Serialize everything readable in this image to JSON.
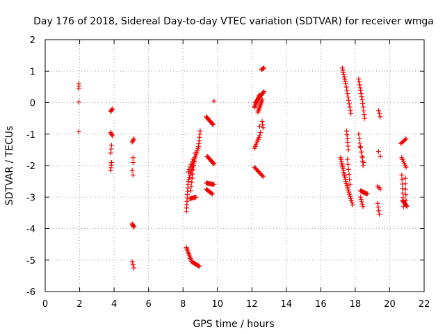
{
  "chart_data": {
    "type": "scatter",
    "title": "Day 176 of 2018, Sidereal Day-to-day VTEC variation (SDTVAR) for receiver wmga",
    "xlabel": "GPS time / hours",
    "ylabel": "SDTVAR / TECUs",
    "xlim": [
      0,
      22
    ],
    "ylim": [
      -6,
      2
    ],
    "xticks": [
      0,
      2,
      4,
      6,
      8,
      10,
      12,
      14,
      16,
      18,
      20,
      22
    ],
    "yticks": [
      -6,
      -5,
      -4,
      -3,
      -2,
      -1,
      0,
      1,
      2
    ],
    "grid": true,
    "marker": "+",
    "color": "#ee0000",
    "segments": [
      {
        "x0": 1.95,
        "y0": 0.6,
        "x1": 1.95,
        "y1": 0.45,
        "n": 3
      },
      {
        "x0": 1.95,
        "y0": 0.02,
        "x1": 1.95,
        "y1": 0.02,
        "n": 1
      },
      {
        "x0": 1.95,
        "y0": -0.92,
        "x1": 1.95,
        "y1": -0.92,
        "n": 1
      },
      {
        "x0": 3.8,
        "y0": -0.28,
        "x1": 3.9,
        "y1": -0.2,
        "n": 4
      },
      {
        "x0": 3.8,
        "y0": -0.95,
        "x1": 3.9,
        "y1": -1.05,
        "n": 4
      },
      {
        "x0": 3.85,
        "y0": -1.35,
        "x1": 3.8,
        "y1": -1.6,
        "n": 3
      },
      {
        "x0": 3.85,
        "y0": -1.9,
        "x1": 3.8,
        "y1": -2.15,
        "n": 4
      },
      {
        "x0": 5.05,
        "y0": -1.25,
        "x1": 5.15,
        "y1": -1.15,
        "n": 4
      },
      {
        "x0": 5.1,
        "y0": -1.75,
        "x1": 5.1,
        "y1": -1.9,
        "n": 2
      },
      {
        "x0": 5.05,
        "y0": -2.15,
        "x1": 5.1,
        "y1": -2.3,
        "n": 2
      },
      {
        "x0": 5.05,
        "y0": -3.85,
        "x1": 5.15,
        "y1": -3.95,
        "n": 5
      },
      {
        "x0": 5.05,
        "y0": -5.05,
        "x1": 5.15,
        "y1": -5.25,
        "n": 3
      },
      {
        "x0": 8.2,
        "y0": -3.45,
        "x1": 8.3,
        "y1": -2.5,
        "n": 10
      },
      {
        "x0": 8.3,
        "y0": -2.5,
        "x1": 8.9,
        "y1": -1.4,
        "n": 18
      },
      {
        "x0": 8.9,
        "y0": -1.4,
        "x1": 9.0,
        "y1": -0.9,
        "n": 6
      },
      {
        "x0": 8.4,
        "y0": -3.05,
        "x1": 8.75,
        "y1": -3.0,
        "n": 8
      },
      {
        "x0": 8.45,
        "y0": -2.8,
        "x1": 8.7,
        "y1": -1.6,
        "n": 10
      },
      {
        "x0": 8.3,
        "y0": -2.2,
        "x1": 8.6,
        "y1": -1.8,
        "n": 6
      },
      {
        "x0": 8.2,
        "y0": -4.6,
        "x1": 8.5,
        "y1": -5.05,
        "n": 10
      },
      {
        "x0": 8.5,
        "y0": -5.05,
        "x1": 8.95,
        "y1": -5.2,
        "n": 10
      },
      {
        "x0": 9.35,
        "y0": -0.45,
        "x1": 9.75,
        "y1": -0.7,
        "n": 12
      },
      {
        "x0": 9.4,
        "y0": -1.7,
        "x1": 9.8,
        "y1": -1.95,
        "n": 10
      },
      {
        "x0": 9.35,
        "y0": -2.55,
        "x1": 9.8,
        "y1": -2.6,
        "n": 10
      },
      {
        "x0": 9.35,
        "y0": -2.75,
        "x1": 9.7,
        "y1": -2.9,
        "n": 8
      },
      {
        "x0": 9.8,
        "y0": 0.05,
        "x1": 9.8,
        "y1": 0.05,
        "n": 1
      },
      {
        "x0": 12.15,
        "y0": -0.15,
        "x1": 12.45,
        "y1": 0.25,
        "n": 12
      },
      {
        "x0": 12.2,
        "y0": 0.0,
        "x1": 12.7,
        "y1": 0.35,
        "n": 12
      },
      {
        "x0": 12.35,
        "y0": -0.3,
        "x1": 12.6,
        "y1": 0.1,
        "n": 10
      },
      {
        "x0": 12.6,
        "y0": -0.6,
        "x1": 12.65,
        "y1": -0.8,
        "n": 3
      },
      {
        "x0": 12.45,
        "y0": -0.75,
        "x1": 12.5,
        "y1": -0.95,
        "n": 2
      },
      {
        "x0": 12.15,
        "y0": -1.45,
        "x1": 12.45,
        "y1": -1.05,
        "n": 8
      },
      {
        "x0": 12.15,
        "y0": -2.05,
        "x1": 12.65,
        "y1": -2.35,
        "n": 10
      },
      {
        "x0": 12.55,
        "y0": 1.05,
        "x1": 12.7,
        "y1": 1.1,
        "n": 4
      },
      {
        "x0": 17.25,
        "y0": 1.1,
        "x1": 17.45,
        "y1": 0.6,
        "n": 8
      },
      {
        "x0": 17.45,
        "y0": 0.6,
        "x1": 17.75,
        "y1": -0.35,
        "n": 10
      },
      {
        "x0": 17.15,
        "y0": -1.75,
        "x1": 17.45,
        "y1": -2.5,
        "n": 14
      },
      {
        "x0": 17.45,
        "y0": -2.5,
        "x1": 17.85,
        "y1": -3.25,
        "n": 12
      },
      {
        "x0": 17.5,
        "y0": -0.9,
        "x1": 17.6,
        "y1": -1.5,
        "n": 6
      },
      {
        "x0": 17.55,
        "y0": -1.8,
        "x1": 17.7,
        "y1": -2.6,
        "n": 6
      },
      {
        "x0": 18.2,
        "y0": 0.75,
        "x1": 18.4,
        "y1": 0.1,
        "n": 8
      },
      {
        "x0": 18.4,
        "y0": 0.1,
        "x1": 18.55,
        "y1": -0.5,
        "n": 6
      },
      {
        "x0": 18.2,
        "y0": -1.0,
        "x1": 18.45,
        "y1": -2.0,
        "n": 8
      },
      {
        "x0": 18.3,
        "y0": -1.4,
        "x1": 18.5,
        "y1": -1.9,
        "n": 4
      },
      {
        "x0": 18.3,
        "y0": -2.8,
        "x1": 18.7,
        "y1": -2.9,
        "n": 10
      },
      {
        "x0": 18.3,
        "y0": -3.0,
        "x1": 18.45,
        "y1": -3.3,
        "n": 5
      },
      {
        "x0": 19.35,
        "y0": -0.25,
        "x1": 19.45,
        "y1": -0.45,
        "n": 3
      },
      {
        "x0": 19.35,
        "y0": -1.55,
        "x1": 19.45,
        "y1": -1.7,
        "n": 2
      },
      {
        "x0": 19.3,
        "y0": -2.65,
        "x1": 19.45,
        "y1": -2.75,
        "n": 3
      },
      {
        "x0": 19.3,
        "y0": -3.2,
        "x1": 19.4,
        "y1": -3.55,
        "n": 4
      },
      {
        "x0": 20.65,
        "y0": -1.3,
        "x1": 20.95,
        "y1": -1.15,
        "n": 6
      },
      {
        "x0": 20.7,
        "y0": -1.75,
        "x1": 20.95,
        "y1": -2.05,
        "n": 6
      },
      {
        "x0": 20.7,
        "y0": -2.3,
        "x1": 20.8,
        "y1": -3.3,
        "n": 8
      },
      {
        "x0": 20.75,
        "y0": -3.1,
        "x1": 21.0,
        "y1": -3.3,
        "n": 8
      },
      {
        "x0": 20.9,
        "y0": -2.4,
        "x1": 20.95,
        "y1": -3.1,
        "n": 5
      }
    ]
  }
}
